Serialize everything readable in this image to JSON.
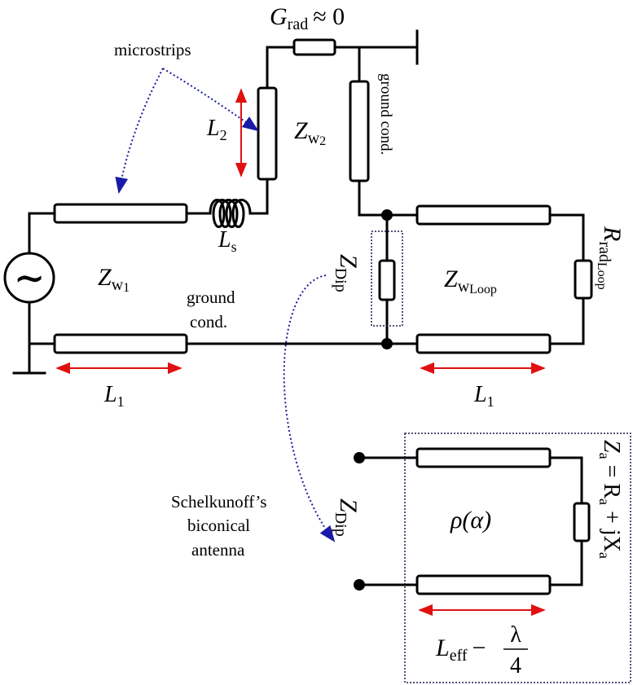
{
  "labels": {
    "grad_main": "G",
    "grad_sub": "rad",
    "grad_approx": "≈ 0",
    "microstrips": "microstrips",
    "l2_main": "L",
    "l2_sub": "2",
    "zw2_main": "Z",
    "zw2_sub": "w",
    "zw2_subsub": "2",
    "ground_cond_vertical": "ground cond.",
    "ls_main": "L",
    "ls_sub": "s",
    "zw1_main": "Z",
    "zw1_sub": "w",
    "zw1_subsub": "1",
    "ground_cond_line1": "ground",
    "ground_cond_line2": "cond.",
    "zdip_main": "Z",
    "zdip_sub": "Dip",
    "zwloop_main": "Z",
    "zwloop_sub": "w",
    "zwloop_subsub": "Loop",
    "rrad_main": "R",
    "rrad_sub": "rad",
    "rrad_subsub": "Loop",
    "l1_left_main": "L",
    "l1_left_sub": "1",
    "l1_right_main": "L",
    "l1_right_sub": "1",
    "schelkunoff_line1": "Schelkunoff’s",
    "schelkunoff_line2": "biconical",
    "schelkunoff_line3": "antenna",
    "zdip2_main": "Z",
    "zdip2_sub": "Dip",
    "rho": "ρ(α)",
    "za_eq_1": "Z",
    "za_eq_1_sub": "a",
    "za_eq_2": " = R",
    "za_eq_2_sub": "a",
    "za_eq_3": " + jX",
    "za_eq_3_sub": "a",
    "leff_main": "L",
    "leff_sub": "eff",
    "leff_minus": "−",
    "lambda": "λ",
    "four": "4",
    "source_symbol": "∼"
  },
  "colors": {
    "dimension_arrow": "#e01010",
    "pointer_arrow": "#1a1a9e",
    "wire": "#000000"
  }
}
